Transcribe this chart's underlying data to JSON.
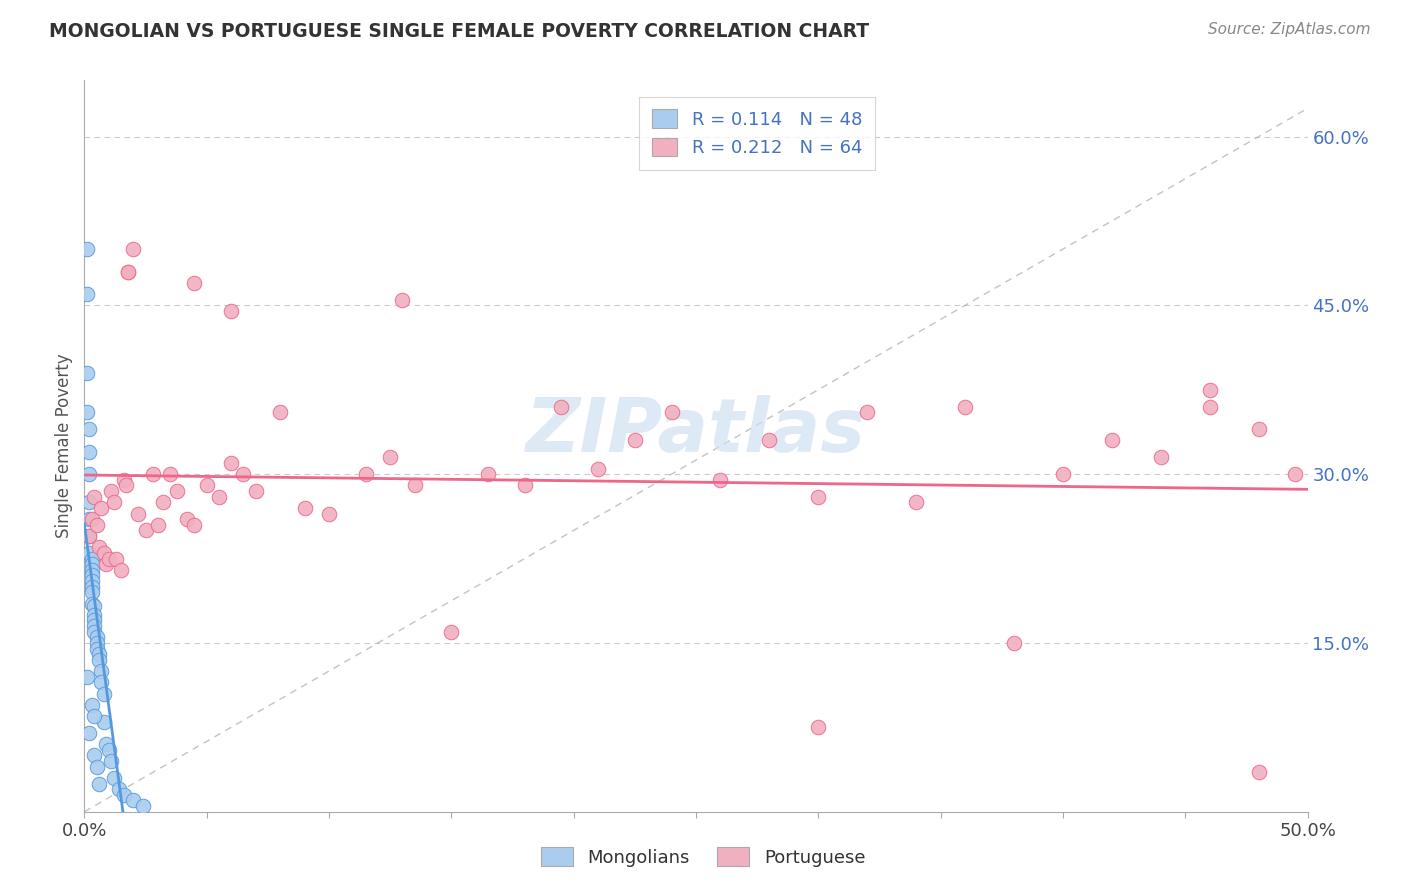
{
  "title": "MONGOLIAN VS PORTUGUESE SINGLE FEMALE POVERTY CORRELATION CHART",
  "source": "Source: ZipAtlas.com",
  "ylabel": "Single Female Poverty",
  "xlim": [
    0.0,
    0.5
  ],
  "ylim": [
    0.0,
    0.65
  ],
  "xtick_positions": [
    0.0,
    0.05,
    0.1,
    0.15,
    0.2,
    0.25,
    0.3,
    0.35,
    0.4,
    0.45,
    0.5
  ],
  "xtick_labels": [
    "0.0%",
    "",
    "",
    "",
    "",
    "",
    "",
    "",
    "",
    "",
    "50.0%"
  ],
  "ytick_right_positions": [
    0.15,
    0.3,
    0.45,
    0.6
  ],
  "ytick_right_labels": [
    "15.0%",
    "30.0%",
    "45.0%",
    "60.0%"
  ],
  "mongolian_color": "#aaccee",
  "portuguese_color": "#f0b0c0",
  "trend_mongolian_color": "#5599dd",
  "trend_portuguese_color": "#ee6688",
  "grid_color": "#cccccc",
  "watermark": "ZIPatlas",
  "watermark_color": "#cce0f0",
  "legend_r1": "R = 0.114   N = 48",
  "legend_r2": "R = 0.212   N = 64",
  "legend_color": "#4472c4",
  "mongolian_x": [
    0.001,
    0.001,
    0.001,
    0.001,
    0.002,
    0.002,
    0.002,
    0.002,
    0.002,
    0.002,
    0.003,
    0.003,
    0.003,
    0.003,
    0.003,
    0.003,
    0.003,
    0.003,
    0.004,
    0.004,
    0.004,
    0.004,
    0.004,
    0.005,
    0.005,
    0.005,
    0.006,
    0.006,
    0.007,
    0.007,
    0.008,
    0.008,
    0.009,
    0.01,
    0.011,
    0.012,
    0.014,
    0.016,
    0.02,
    0.024,
    0.001,
    0.002,
    0.002,
    0.003,
    0.004,
    0.004,
    0.005,
    0.006
  ],
  "mongolian_y": [
    0.5,
    0.46,
    0.355,
    0.12,
    0.32,
    0.3,
    0.275,
    0.26,
    0.245,
    0.23,
    0.225,
    0.22,
    0.215,
    0.21,
    0.205,
    0.2,
    0.195,
    0.185,
    0.183,
    0.175,
    0.17,
    0.165,
    0.16,
    0.155,
    0.15,
    0.145,
    0.14,
    0.135,
    0.125,
    0.115,
    0.105,
    0.08,
    0.06,
    0.055,
    0.045,
    0.03,
    0.02,
    0.015,
    0.01,
    0.005,
    0.39,
    0.34,
    0.07,
    0.095,
    0.085,
    0.05,
    0.04,
    0.025
  ],
  "portuguese_x": [
    0.002,
    0.003,
    0.004,
    0.005,
    0.006,
    0.007,
    0.008,
    0.009,
    0.01,
    0.011,
    0.012,
    0.013,
    0.015,
    0.016,
    0.017,
    0.018,
    0.02,
    0.022,
    0.025,
    0.028,
    0.03,
    0.032,
    0.035,
    0.038,
    0.042,
    0.045,
    0.05,
    0.055,
    0.06,
    0.065,
    0.07,
    0.08,
    0.09,
    0.1,
    0.115,
    0.125,
    0.135,
    0.15,
    0.165,
    0.18,
    0.195,
    0.21,
    0.225,
    0.24,
    0.26,
    0.28,
    0.3,
    0.32,
    0.34,
    0.36,
    0.38,
    0.4,
    0.42,
    0.44,
    0.46,
    0.48,
    0.495,
    0.018,
    0.045,
    0.3,
    0.46,
    0.06,
    0.13,
    0.48
  ],
  "portuguese_y": [
    0.245,
    0.26,
    0.28,
    0.255,
    0.235,
    0.27,
    0.23,
    0.22,
    0.225,
    0.285,
    0.275,
    0.225,
    0.215,
    0.295,
    0.29,
    0.48,
    0.5,
    0.265,
    0.25,
    0.3,
    0.255,
    0.275,
    0.3,
    0.285,
    0.26,
    0.255,
    0.29,
    0.28,
    0.31,
    0.3,
    0.285,
    0.355,
    0.27,
    0.265,
    0.3,
    0.315,
    0.29,
    0.16,
    0.3,
    0.29,
    0.36,
    0.305,
    0.33,
    0.355,
    0.295,
    0.33,
    0.28,
    0.355,
    0.275,
    0.36,
    0.15,
    0.3,
    0.33,
    0.315,
    0.375,
    0.035,
    0.3,
    0.48,
    0.47,
    0.075,
    0.36,
    0.445,
    0.455,
    0.34
  ]
}
